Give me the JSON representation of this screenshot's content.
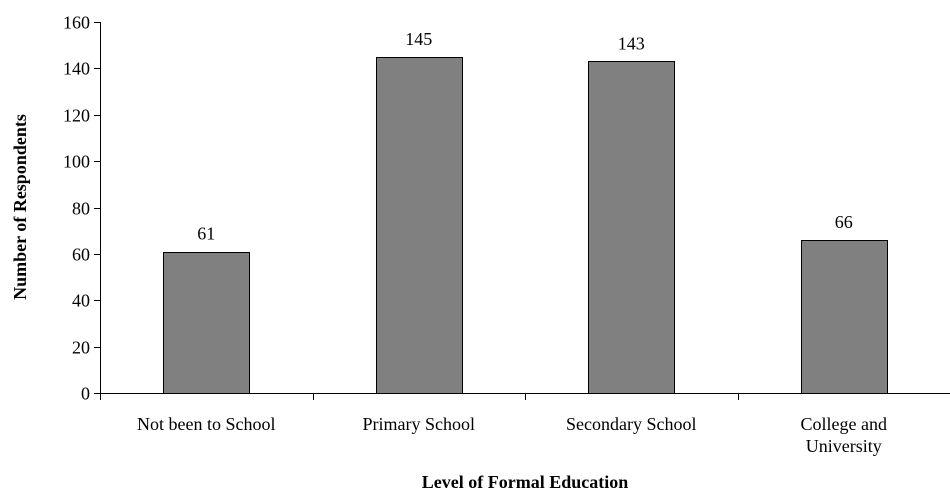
{
  "chart_data": {
    "type": "bar",
    "categories": [
      "Not been to School",
      "Primary School",
      "Secondary School",
      "College and University"
    ],
    "category_lines": [
      [
        "Not been to School"
      ],
      [
        "Primary School"
      ],
      [
        "Secondary School"
      ],
      [
        "College and",
        "University"
      ]
    ],
    "values": [
      61,
      145,
      143,
      66
    ],
    "data_labels": [
      "61",
      "145",
      "143",
      "66"
    ],
    "title": "",
    "xlabel": "Level of Formal Education",
    "ylabel": "Number of Respondents",
    "ylim": [
      0,
      160
    ],
    "yticks": [
      0,
      20,
      40,
      60,
      80,
      100,
      120,
      140,
      160
    ],
    "ytick_labels": [
      "0",
      "20",
      "40",
      "60",
      "80",
      "100",
      "120",
      "140",
      "160"
    ],
    "grid": false,
    "legend": "none",
    "bar_color": "#808080"
  }
}
